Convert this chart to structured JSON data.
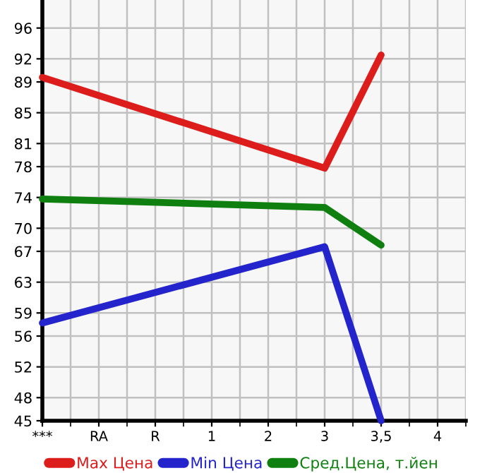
{
  "chart_data": {
    "type": "line",
    "categories": [
      "***",
      "RA",
      "R",
      "1",
      "2",
      "3",
      "3,5",
      "4"
    ],
    "series": [
      {
        "name": "Max Цена",
        "color": "#dd1c1c",
        "values": [
          89.6,
          null,
          null,
          null,
          null,
          77.8,
          92.5,
          null
        ]
      },
      {
        "name": "Min Цена",
        "color": "#2424cc",
        "values": [
          57.7,
          null,
          null,
          null,
          null,
          67.6,
          45,
          null
        ]
      },
      {
        "name": "Сред.Цена, т.йен",
        "color": "#0f800f",
        "values": [
          73.8,
          null,
          null,
          null,
          null,
          72.7,
          67.8,
          null
        ]
      }
    ],
    "ylim": [
      45,
      99.64
    ],
    "yticks": [
      45,
      48,
      52,
      56,
      59,
      63,
      67,
      70,
      74,
      78,
      81,
      85,
      89,
      92,
      96
    ],
    "grid": true,
    "legend": "bottom",
    "marker": "none",
    "line_style": "solid"
  }
}
